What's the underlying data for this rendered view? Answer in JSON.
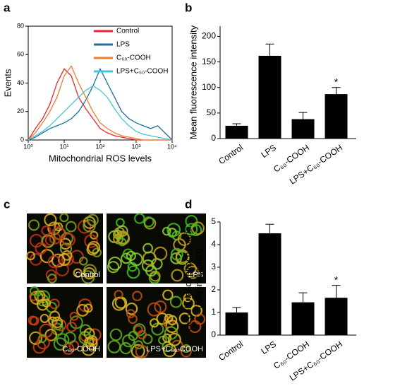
{
  "panel_labels": [
    "a",
    "b",
    "c",
    "d"
  ],
  "chart_data": [
    {
      "type": "line",
      "log_x": true,
      "xlabel": "Mitochondrial ROS levels",
      "ylabel": "Events",
      "x": [
        1,
        1.58,
        2.51,
        3.98,
        6.31,
        10,
        15.8,
        25.1,
        39.8,
        63.1,
        100,
        158,
        251,
        398,
        631,
        1000,
        1585,
        2512,
        3981,
        6310,
        10000
      ],
      "xlim": [
        1,
        10000
      ],
      "xticks": [
        {
          "value": 1,
          "label": "10⁰"
        },
        {
          "value": 10,
          "label": "10¹"
        },
        {
          "value": 100,
          "label": "10²"
        },
        {
          "value": 1000,
          "label": "10³"
        },
        {
          "value": 10000,
          "label": "10⁴"
        }
      ],
      "ylim": [
        0,
        80
      ],
      "yticks": [
        0,
        20,
        40,
        60,
        80
      ],
      "legend": "upper right",
      "series": [
        {
          "name": "Control",
          "color": "#e8262b",
          "values": [
            0,
            8,
            15,
            25,
            40,
            50,
            45,
            30,
            22,
            15,
            8,
            5,
            3,
            2,
            1,
            0,
            0,
            0,
            0,
            0,
            0
          ]
        },
        {
          "name": "LPS",
          "color": "#1f6e9c",
          "values": [
            0,
            2,
            5,
            8,
            10,
            12,
            15,
            20,
            28,
            38,
            50,
            40,
            30,
            20,
            15,
            12,
            10,
            8,
            10,
            5,
            0
          ]
        },
        {
          "name": "C₆₀-COOH",
          "color": "#f07b2f",
          "values": [
            0,
            5,
            12,
            20,
            30,
            45,
            52,
            40,
            30,
            20,
            12,
            8,
            5,
            3,
            2,
            1,
            0,
            0,
            0,
            0,
            0
          ]
        },
        {
          "name": "LPS+C₆₀-COOH",
          "color": "#3ec8d6",
          "values": [
            0,
            3,
            6,
            10,
            15,
            20,
            25,
            30,
            35,
            38,
            35,
            30,
            22,
            15,
            10,
            6,
            4,
            3,
            2,
            1,
            0
          ]
        }
      ]
    },
    {
      "type": "bar",
      "ylabel": "Mean fluorescence intensity",
      "categories": [
        "Control",
        "LPS",
        "C₆₀-COOH",
        "LPS+C₆₀-COOH"
      ],
      "values": [
        25,
        162,
        38,
        87
      ],
      "errors": [
        4,
        23,
        13,
        13
      ],
      "color": "#000000",
      "ylim": [
        0,
        220
      ],
      "yticks": [
        0,
        50,
        100,
        150,
        200
      ],
      "annotations": [
        {
          "category": "LPS+C₆₀-COOH",
          "text": "*"
        }
      ]
    },
    {
      "type": "bar",
      "ylabel": [
        "Depolarized mitochondria",
        "(fold induction)"
      ],
      "categories": [
        "Control",
        "LPS",
        "C₆₀-COOH",
        "LPS+C₆₀-COOH"
      ],
      "values": [
        1.0,
        4.5,
        1.45,
        1.65
      ],
      "errors": [
        0.22,
        0.4,
        0.42,
        0.55
      ],
      "color": "#000000",
      "ylim": [
        0,
        5
      ],
      "yticks": [
        0,
        1,
        2,
        3,
        4,
        5
      ],
      "annotations": [
        {
          "category": "LPS+C₆₀-COOH",
          "text": "*"
        }
      ]
    }
  ],
  "images": {
    "labels": [
      "Control",
      "LPS",
      "C₆₀-COOH",
      "LPS+C₆₀-COOH"
    ]
  }
}
